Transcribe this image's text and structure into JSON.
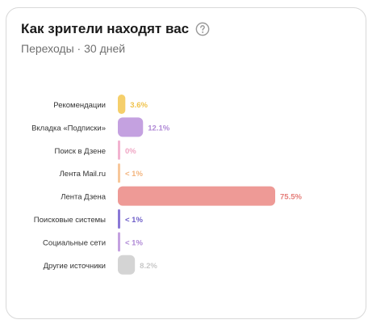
{
  "header": {
    "title": "Как зрители находят вас",
    "help_icon": "question-circle-icon",
    "subtitle": "Переходы · 30 дней"
  },
  "chart_data": {
    "type": "bar",
    "orientation": "horizontal",
    "title": "Как зрители находят вас",
    "subtitle": "Переходы · 30 дней",
    "categories": [
      "Рекомендации",
      "Вкладка «Подписки»",
      "Поиск в Дзене",
      "Лента Mail.ru",
      "Лента Дзена",
      "Поисковые системы",
      "Социальные сети",
      "Другие источники"
    ],
    "values": [
      3.6,
      12.1,
      0,
      0.5,
      75.5,
      0.5,
      0.5,
      8.2
    ],
    "labels": [
      "3.6%",
      "12.1%",
      "0%",
      "< 1%",
      "75.5%",
      "< 1%",
      "< 1%",
      "8.2%"
    ],
    "colors": [
      "#f5cf6b",
      "#c4a1e0",
      "#f2b3d0",
      "#f7c79a",
      "#ee9a96",
      "#8a78d6",
      "#c4a1e0",
      "#d4d4d4"
    ],
    "label_colors": [
      "#efc24a",
      "#b08ad6",
      "#f0a6c4",
      "#f3b57f",
      "#e57e7a",
      "#6f5fc9",
      "#b08ad6",
      "#c8c8c8"
    ],
    "xlim": [
      0,
      75.5
    ],
    "grid": false,
    "legend": "none"
  }
}
